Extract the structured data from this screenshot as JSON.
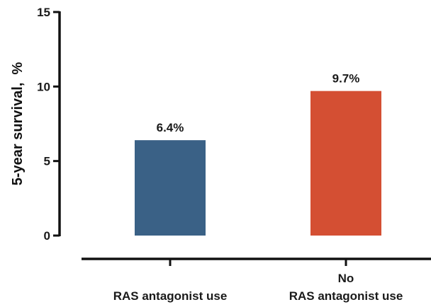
{
  "chart_data": {
    "type": "bar",
    "title": "",
    "xlabel": "",
    "ylabel": "5-year survival,  %",
    "ylim": [
      0,
      15
    ],
    "yticks": [
      0,
      5,
      10,
      15
    ],
    "grid": false,
    "categories": [
      {
        "lines": [
          "",
          "RAS antagonist use"
        ]
      },
      {
        "lines": [
          "No",
          "RAS antagonist use"
        ]
      }
    ],
    "values": [
      6.4,
      9.7
    ],
    "data_labels": [
      "6.4%",
      "9.7%"
    ],
    "colors": [
      "#3a6186",
      "#d44f33"
    ]
  }
}
